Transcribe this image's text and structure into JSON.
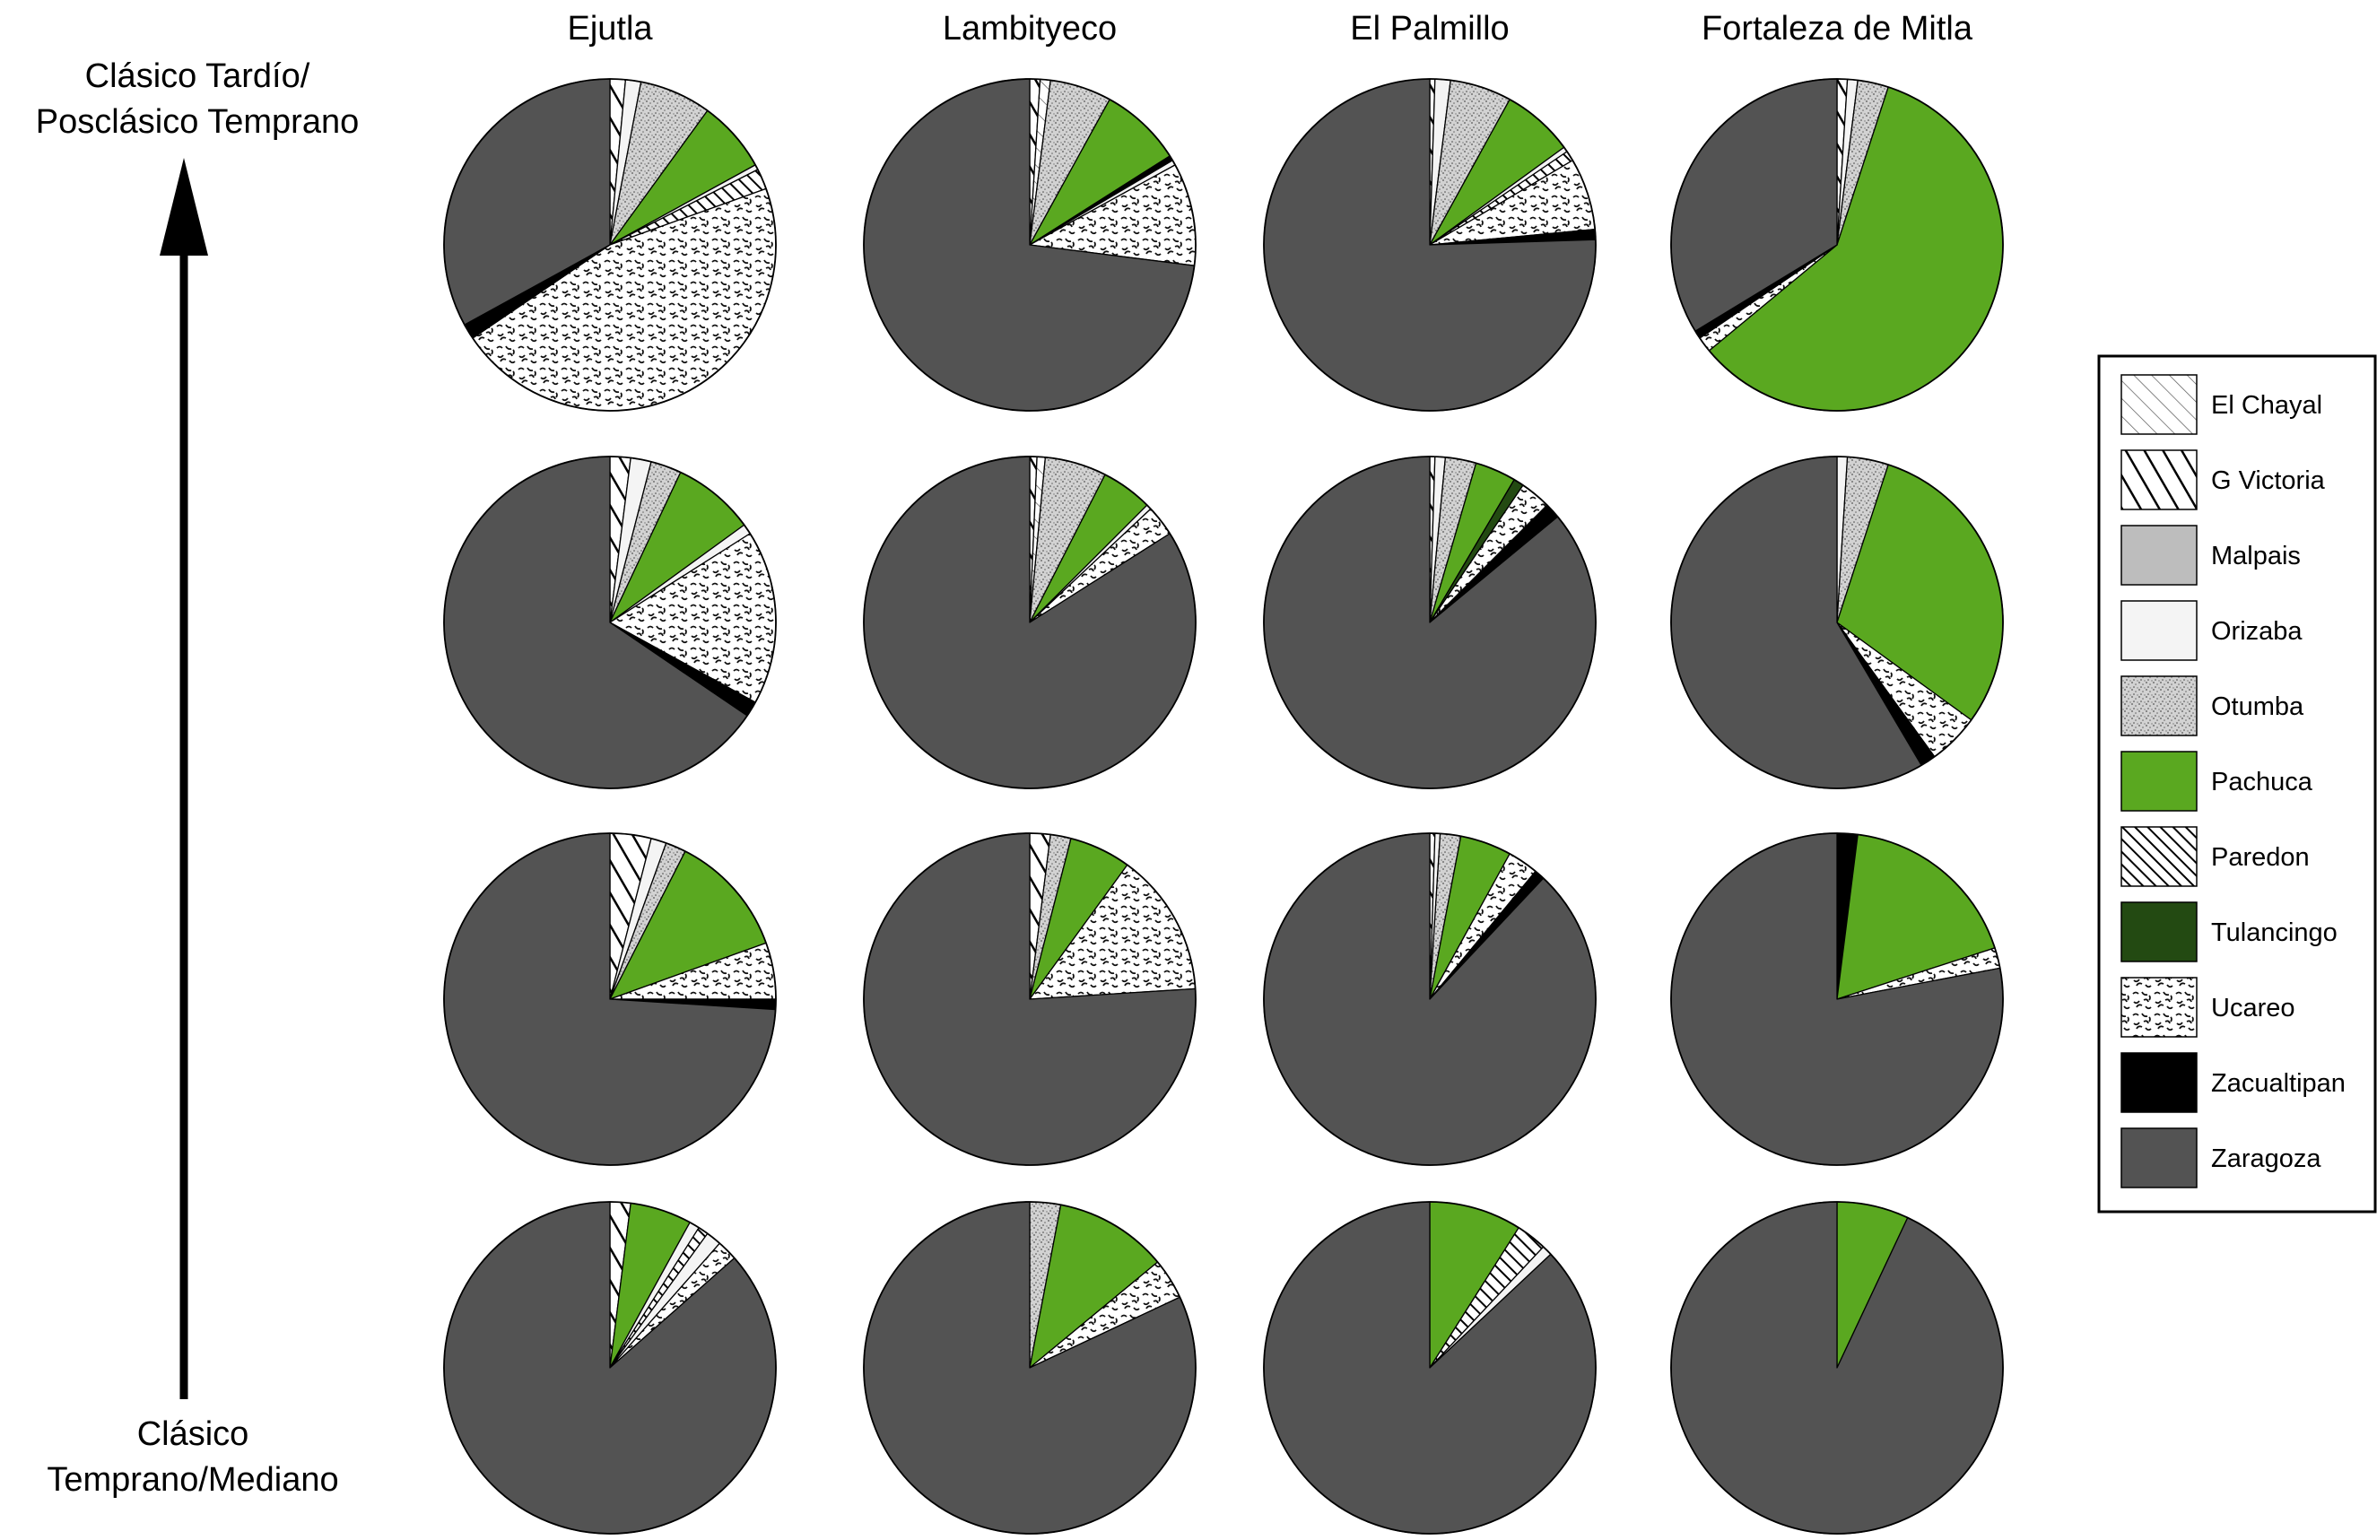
{
  "chart_data": {
    "type": "pie",
    "columns": [
      "Ejutla",
      "Lambityeco",
      "El Palmillo",
      "Fortaleza de Mitla"
    ],
    "time_axis": {
      "top_label": [
        "Clásico Tardío/",
        "Posclásico Temprano"
      ],
      "bottom_label": [
        "Clásico",
        "Temprano/Mediano"
      ]
    },
    "legend": [
      {
        "name": "El Chayal",
        "color": "#ffffff",
        "pattern": "thin-diagonal"
      },
      {
        "name": "G Victoria",
        "color": "#ffffff",
        "pattern": "thick-diagonal"
      },
      {
        "name": "Malpais",
        "color": "#bdbdbd",
        "pattern": "solid"
      },
      {
        "name": "Orizaba",
        "color": "#f4f4f4",
        "pattern": "solid"
      },
      {
        "name": "Otumba",
        "color": "#c6c6c6",
        "pattern": "stipple"
      },
      {
        "name": "Pachuca",
        "color": "#5aa820",
        "pattern": "solid"
      },
      {
        "name": "Paredon",
        "color": "#ffffff",
        "pattern": "dense-diagonal"
      },
      {
        "name": "Tulancingo",
        "color": "#234a12",
        "pattern": "solid"
      },
      {
        "name": "Ucareo",
        "color": "#f8f8f8",
        "pattern": "squiggle"
      },
      {
        "name": "Zacualtipan",
        "color": "#000000",
        "pattern": "solid"
      },
      {
        "name": "Zaragoza",
        "color": "#535353",
        "pattern": "solid"
      }
    ],
    "units": "percent",
    "note_on_order": "rows listed from top (later period) to bottom (earlier period)",
    "rows": [
      [
        {
          "site": "Ejutla",
          "slices": [
            [
              "G Victoria",
              1.5
            ],
            [
              "Orizaba",
              1.5
            ],
            [
              "Otumba",
              7
            ],
            [
              "Pachuca",
              7
            ],
            [
              "Orizaba",
              0.5
            ],
            [
              "Paredon",
              2
            ],
            [
              "Ucareo",
              46
            ],
            [
              "Zacualtipan",
              1.5
            ],
            [
              "Zaragoza",
              33
            ]
          ]
        },
        {
          "site": "Lambityeco",
          "slices": [
            [
              "G Victoria",
              1
            ],
            [
              "El Chayal",
              1
            ],
            [
              "Otumba",
              6
            ],
            [
              "Pachuca",
              8
            ],
            [
              "Zacualtipan",
              0.5
            ],
            [
              "Orizaba",
              0.5
            ],
            [
              "Ucareo",
              10
            ],
            [
              "Zaragoza",
              73
            ]
          ]
        },
        {
          "site": "El Palmillo",
          "slices": [
            [
              "G Victoria",
              0.5
            ],
            [
              "Orizaba",
              1.5
            ],
            [
              "Otumba",
              6
            ],
            [
              "Pachuca",
              7
            ],
            [
              "Orizaba",
              0.5
            ],
            [
              "Paredon",
              1
            ],
            [
              "Ucareo",
              7
            ],
            [
              "Zacualtipan",
              1
            ],
            [
              "Zaragoza",
              75.5
            ]
          ]
        },
        {
          "site": "Fortaleza de Mitla",
          "slices": [
            [
              "G Victoria",
              1
            ],
            [
              "Orizaba",
              1
            ],
            [
              "Otumba",
              3
            ],
            [
              "Pachuca",
              59
            ],
            [
              "Ucareo",
              1.5
            ],
            [
              "Zacualtipan",
              0.8
            ],
            [
              "Zaragoza",
              33.7
            ]
          ]
        }
      ],
      [
        {
          "site": "Ejutla",
          "slices": [
            [
              "G Victoria",
              2
            ],
            [
              "Orizaba",
              2
            ],
            [
              "Otumba",
              3
            ],
            [
              "Pachuca",
              8
            ],
            [
              "Orizaba",
              1
            ],
            [
              "Ucareo",
              17
            ],
            [
              "Zacualtipan",
              1.5
            ],
            [
              "Zaragoza",
              65.5
            ]
          ]
        },
        {
          "site": "Lambityeco",
          "slices": [
            [
              "G Victoria",
              0.7
            ],
            [
              "El Chayal",
              0.8
            ],
            [
              "Otumba",
              6
            ],
            [
              "Pachuca",
              5
            ],
            [
              "Orizaba",
              0.5
            ],
            [
              "Ucareo",
              3
            ],
            [
              "Zaragoza",
              84
            ]
          ]
        },
        {
          "site": "El Palmillo",
          "slices": [
            [
              "G Victoria",
              0.5
            ],
            [
              "Orizaba",
              1
            ],
            [
              "Otumba",
              3
            ],
            [
              "Pachuca",
              4
            ],
            [
              "Tulancingo",
              1
            ],
            [
              "Ucareo",
              3
            ],
            [
              "Zacualtipan",
              1.5
            ],
            [
              "Zaragoza",
              86
            ]
          ]
        },
        {
          "site": "Fortaleza de Mitla",
          "slices": [
            [
              "Orizaba",
              1
            ],
            [
              "Otumba",
              4
            ],
            [
              "Pachuca",
              30
            ],
            [
              "Ucareo",
              5
            ],
            [
              "Zacualtipan",
              1.5
            ],
            [
              "Zaragoza",
              58.5
            ]
          ]
        }
      ],
      [
        {
          "site": "Ejutla",
          "slices": [
            [
              "G Victoria",
              4
            ],
            [
              "Orizaba",
              1.5
            ],
            [
              "Otumba",
              2
            ],
            [
              "Pachuca",
              12
            ],
            [
              "Ucareo",
              5.5
            ],
            [
              "Zacualtipan",
              1
            ],
            [
              "Zaragoza",
              74
            ]
          ]
        },
        {
          "site": "Lambityeco",
          "slices": [
            [
              "G Victoria",
              2
            ],
            [
              "Otumba",
              2
            ],
            [
              "Pachuca",
              6
            ],
            [
              "Ucareo",
              14
            ],
            [
              "Zaragoza",
              76
            ]
          ]
        },
        {
          "site": "El Palmillo",
          "slices": [
            [
              "G Victoria",
              0.5
            ],
            [
              "Orizaba",
              0.5
            ],
            [
              "Otumba",
              2
            ],
            [
              "Pachuca",
              5
            ],
            [
              "Ucareo",
              3
            ],
            [
              "Zacualtipan",
              1
            ],
            [
              "Zaragoza",
              88
            ]
          ]
        },
        {
          "site": "Fortaleza de Mitla",
          "slices": [
            [
              "Zacualtipan",
              2
            ],
            [
              "Pachuca",
              18
            ],
            [
              "Ucareo",
              2
            ],
            [
              "Zaragoza",
              78
            ]
          ]
        }
      ],
      [
        {
          "site": "Ejutla",
          "slices": [
            [
              "G Victoria",
              2
            ],
            [
              "Pachuca",
              6
            ],
            [
              "Orizaba",
              1
            ],
            [
              "Paredon",
              1
            ],
            [
              "Orizaba",
              1.5
            ],
            [
              "Ucareo",
              2
            ],
            [
              "Zaragoza",
              86.5
            ]
          ]
        },
        {
          "site": "Lambityeco",
          "slices": [
            [
              "Otumba",
              3
            ],
            [
              "Pachuca",
              11
            ],
            [
              "Ucareo",
              4
            ],
            [
              "Zaragoza",
              82
            ]
          ]
        },
        {
          "site": "El Palmillo",
          "slices": [
            [
              "Pachuca",
              9
            ],
            [
              "Paredon",
              3
            ],
            [
              "Orizaba",
              1
            ],
            [
              "Zaragoza",
              87
            ]
          ]
        },
        {
          "site": "Fortaleza de Mitla",
          "slices": [
            [
              "Pachuca",
              7
            ],
            [
              "Zaragoza",
              93
            ]
          ]
        }
      ]
    ]
  }
}
